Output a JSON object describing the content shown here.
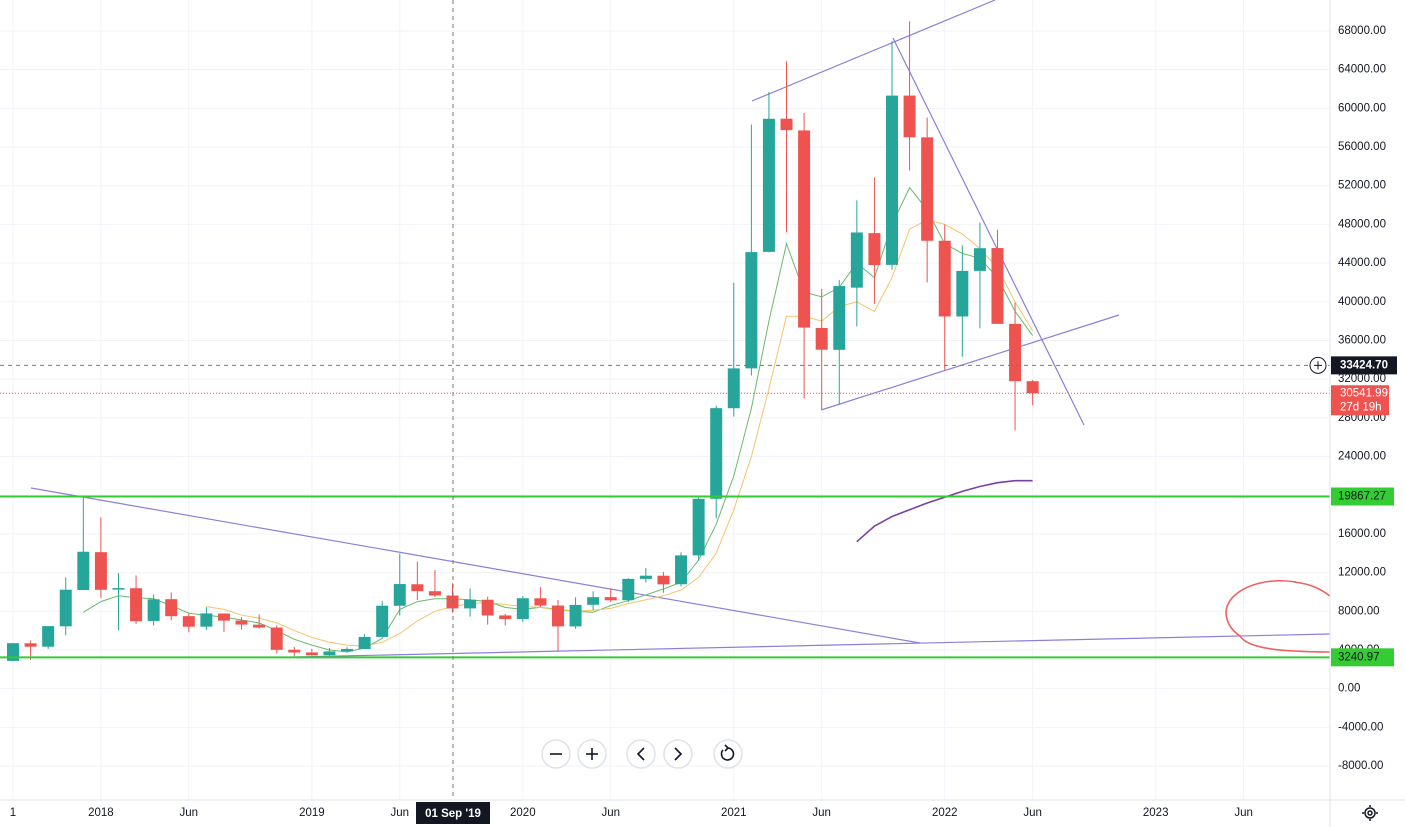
{
  "chart_data": {
    "type": "candlestick",
    "categories": [
      "1",
      null,
      null,
      null,
      null,
      "2018",
      null,
      null,
      null,
      null,
      "Jun",
      null,
      null,
      null,
      null,
      null,
      null,
      "2019",
      null,
      null,
      null,
      null,
      "Jun",
      null,
      null,
      null,
      null,
      null,
      null,
      "2020",
      null,
      null,
      null,
      null,
      "Jun",
      null,
      null,
      null,
      null,
      null,
      null,
      "2021",
      null,
      null,
      null,
      null,
      "Jun",
      null,
      null,
      null,
      null,
      null,
      null,
      "2022",
      null,
      null,
      null,
      null,
      "Jun",
      null,
      null,
      null,
      null,
      null,
      null,
      "2023",
      null,
      null,
      null,
      null,
      "Jun",
      null,
      null,
      null,
      null
    ],
    "open": [
      2871,
      4689,
      4341,
      6445,
      10198,
      14112,
      10237,
      10385,
      7003,
      9251,
      7500,
      6411,
      7769,
      7044,
      6619,
      6318,
      4024,
      3746,
      3460,
      3853,
      4105,
      5350,
      8573,
      10796,
      10077,
      9630,
      8299,
      9194,
      7571,
      7194,
      9346,
      8600,
      6437,
      8672,
      9463,
      9145,
      11349,
      11680,
      10796,
      13780,
      19633,
      28994,
      33115,
      45159,
      58926,
      57714,
      37293,
      35035,
      41461,
      47099,
      43816,
      61320,
      57001,
      46311,
      38481,
      43194,
      45554,
      37714,
      31792,
      null,
      null,
      null,
      null,
      null,
      null,
      null,
      null,
      null,
      null,
      null,
      null,
      null,
      null,
      null,
      null
    ],
    "high": [
      4736,
      4976,
      6470,
      11517,
      19892,
      17712,
      11958,
      11710,
      9745,
      9964,
      7754,
      8424,
      7769,
      7388,
      7680,
      6547,
      4309,
      4109,
      4210,
      4296,
      5642,
      9074,
      13970,
      13130,
      12274,
      10898,
      10370,
      9505,
      7743,
      9578,
      10500,
      9167,
      9440,
      10067,
      10394,
      11434,
      12468,
      12067,
      14100,
      19749,
      29244,
      41950,
      58330,
      61683,
      64863,
      59519,
      41330,
      42235,
      50482,
      52853,
      66930,
      69000,
      59042,
      47990,
      45821,
      48189,
      47444,
      39903,
      31925,
      null,
      null,
      null,
      null,
      null,
      null,
      null,
      null,
      null,
      null,
      null,
      null,
      null,
      null,
      null,
      null
    ],
    "low": [
      2817,
      2972,
      4110,
      5519,
      10198,
      9402,
      6048,
      6675,
      6526,
      7090,
      5826,
      6073,
      5880,
      6100,
      6205,
      3652,
      3158,
      3400,
      3392,
      3734,
      4096,
      5347,
      7564,
      9163,
      9467,
      7830,
      7446,
      6617,
      6540,
      6871,
      8450,
      3858,
      6202,
      8118,
      8975,
      8977,
      10976,
      9916,
      10566,
      13219,
      17619,
      28130,
      32384,
      45115,
      47159,
      30001,
      28893,
      29360,
      37458,
      39787,
      43321,
      53569,
      42000,
      32950,
      34323,
      37260,
      37702,
      26700,
      29300,
      null,
      null,
      null,
      null,
      null,
      null,
      null,
      null,
      null,
      null,
      null,
      null,
      null,
      null,
      null,
      null
    ],
    "close": [
      4703,
      4338,
      6468,
      10233,
      14157,
      10221,
      10397,
      6973,
      9240,
      7494,
      6404,
      7780,
      7037,
      6625,
      6318,
      4017,
      3742,
      3457,
      3854,
      4105,
      5350,
      8574,
      10817,
      10085,
      9631,
      8294,
      9199,
      7569,
      7194,
      9350,
      8599,
      6438,
      8658,
      9461,
      9137,
      11351,
      11681,
      10784,
      13781,
      19626,
      29002,
      33114,
      45137,
      58918,
      57750,
      37332,
      35040,
      41626,
      47166,
      43790,
      61318,
      57005,
      46306,
      38483,
      43193,
      45538,
      37714,
      31792,
      30541.99,
      null,
      null,
      null,
      null,
      null,
      null,
      null,
      null,
      null,
      null,
      null,
      null,
      null,
      null,
      null,
      null
    ],
    "up_color": "#26a69a",
    "down_color": "#ef5350",
    "ma_series": [
      {
        "color": "#66bb6a",
        "values": [
          null,
          null,
          null,
          null,
          7900,
          9000,
          9600,
          9400,
          9300,
          8600,
          7800,
          7600,
          7400,
          7100,
          6800,
          6000,
          5100,
          4500,
          4000,
          3800,
          4200,
          5200,
          8200,
          9000,
          9300,
          9300,
          9200,
          9000,
          8400,
          8200,
          8400,
          8200,
          8000,
          7900,
          8600,
          9100,
          9700,
          10300,
          11000,
          13300,
          17000,
          22000,
          29000,
          38000,
          46000,
          41000,
          40500,
          41500,
          44000,
          42500,
          48000,
          51800,
          49500,
          46000,
          45000,
          44500,
          42500,
          39000,
          36500,
          null,
          null,
          null,
          null,
          null,
          null,
          null,
          null,
          null,
          null,
          null,
          null,
          null,
          null,
          null,
          null
        ]
      },
      {
        "color": "#f7c26b",
        "values": [
          null,
          null,
          null,
          null,
          null,
          null,
          null,
          null,
          null,
          null,
          null,
          8500,
          8200,
          7600,
          7300,
          6800,
          6000,
          5300,
          4800,
          4500,
          4400,
          4800,
          5700,
          7000,
          8000,
          8500,
          8800,
          8900,
          8700,
          8500,
          8400,
          8100,
          8000,
          8100,
          8300,
          8800,
          9200,
          9600,
          10200,
          11500,
          14000,
          18500,
          24000,
          31000,
          38500,
          38500,
          38000,
          39500,
          40000,
          39000,
          42500,
          47500,
          48500,
          48000,
          47000,
          45500,
          43500,
          40000,
          37000,
          null,
          null,
          null,
          null,
          null,
          null,
          null,
          null,
          null,
          null,
          null,
          null,
          null,
          null,
          null,
          null
        ]
      },
      {
        "color": "#7b3fa6",
        "values": [
          null,
          null,
          null,
          null,
          null,
          null,
          null,
          null,
          null,
          null,
          null,
          null,
          null,
          null,
          null,
          null,
          null,
          null,
          null,
          null,
          null,
          null,
          null,
          null,
          null,
          null,
          null,
          null,
          null,
          null,
          null,
          null,
          null,
          null,
          null,
          null,
          null,
          null,
          null,
          null,
          null,
          null,
          null,
          null,
          null,
          null,
          null,
          null,
          15200,
          16800,
          17800,
          18500,
          19200,
          19800,
          20400,
          20900,
          21300,
          21500,
          21500,
          null,
          null,
          null,
          null,
          null,
          null,
          null,
          null,
          null,
          null,
          null,
          null,
          null,
          null,
          null,
          null
        ]
      }
    ],
    "ylim": [
      -11510,
      71200
    ],
    "yticks": [
      {
        "value": -8000,
        "label": "-8000.00"
      },
      {
        "value": -4000,
        "label": "-4000.00"
      },
      {
        "value": 0,
        "label": "0.00"
      },
      {
        "value": 4000,
        "label": "4000.00"
      },
      {
        "value": 8000,
        "label": "8000.00"
      },
      {
        "value": 12000,
        "label": "12000.00"
      },
      {
        "value": 16000,
        "label": "16000.00"
      },
      {
        "value": 20000,
        "label": "20000.00"
      },
      {
        "value": 24000,
        "label": "24000.00"
      },
      {
        "value": 28000,
        "label": "28000.00"
      },
      {
        "value": 32000,
        "label": "32000.00"
      },
      {
        "value": 36000,
        "label": "36000.00"
      },
      {
        "value": 40000,
        "label": "40000.00"
      },
      {
        "value": 44000,
        "label": "44000.00"
      },
      {
        "value": 48000,
        "label": "48000.00"
      },
      {
        "value": 52000,
        "label": "52000.00"
      },
      {
        "value": 56000,
        "label": "56000.00"
      },
      {
        "value": 60000,
        "label": "60000.00"
      },
      {
        "value": 64000,
        "label": "64000.00"
      },
      {
        "value": 68000,
        "label": "68000.00"
      }
    ],
    "grid": true,
    "hlines": [
      {
        "value": 19867.27,
        "label": "19867.27",
        "color": "#33cc33"
      },
      {
        "value": 3240.97,
        "label": "3240.97",
        "color": "#33cc33"
      }
    ],
    "crosshair": {
      "x_label": "01 Sep '19",
      "y": {
        "value": 33424.7,
        "label": "33424.70"
      }
    },
    "last_price": {
      "value": 30541.99,
      "label": "30541.99",
      "countdown": "27d 19h",
      "color": "#ef5350"
    }
  }
}
